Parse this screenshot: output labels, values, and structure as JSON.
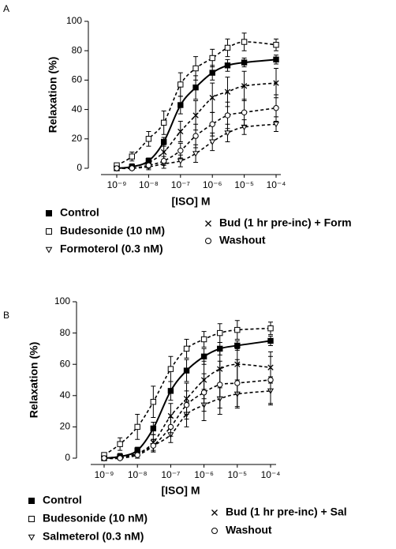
{
  "chart_data": [
    {
      "type": "line",
      "panel": "A",
      "xlabel": "[ISO] M",
      "ylabel": "Relaxation (%)",
      "xscale": "log",
      "x": [
        1e-09,
        3e-09,
        1e-08,
        3e-08,
        1e-07,
        3e-07,
        1e-06,
        3e-06,
        1e-05,
        0.0001
      ],
      "xlim": [
        1e-09,
        0.0001
      ],
      "xticks": [
        {
          "value": 1e-09,
          "label": "10⁻⁹"
        },
        {
          "value": 1e-08,
          "label": "10⁻⁸"
        },
        {
          "value": 1e-07,
          "label": "10⁻⁷"
        },
        {
          "value": 1e-06,
          "label": "10⁻⁶"
        },
        {
          "value": 1e-05,
          "label": "10⁻⁵"
        },
        {
          "value": 0.0001,
          "label": "10⁻⁴"
        }
      ],
      "ylim": [
        0,
        100
      ],
      "yticks": [
        0,
        20,
        40,
        60,
        80,
        100
      ],
      "series": [
        {
          "name": "Control",
          "color": "#000000",
          "marker": "square-filled",
          "line_style": "solid",
          "values": [
            0,
            1,
            5,
            18,
            43,
            55,
            65,
            70,
            72,
            74
          ],
          "errors": [
            0,
            1,
            2,
            3,
            6,
            8,
            5,
            4,
            3,
            3
          ]
        },
        {
          "name": "Budesonide (10 nM)",
          "color": "#000000",
          "marker": "square",
          "line_style": "dashed",
          "values": [
            2,
            8,
            20,
            31,
            57,
            68,
            75,
            82,
            86,
            84
          ],
          "errors": [
            1,
            3,
            5,
            8,
            8,
            8,
            6,
            6,
            6,
            4
          ]
        },
        {
          "name": "Formoterol (0.3 nM)",
          "color": "#000000",
          "marker": "triangle-down",
          "line_style": "dashed",
          "values": [
            0,
            0,
            1,
            3,
            5,
            10,
            18,
            24,
            28,
            30
          ],
          "errors": [
            0,
            1,
            2,
            3,
            4,
            6,
            6,
            6,
            5,
            5
          ]
        },
        {
          "name": "Bud (1 hr pre-inc) + Form",
          "color": "#000000",
          "marker": "x",
          "line_style": "dashed",
          "values": [
            0,
            1,
            4,
            11,
            25,
            36,
            48,
            52,
            56,
            58
          ],
          "errors": [
            1,
            2,
            3,
            5,
            7,
            10,
            10,
            10,
            10,
            10
          ]
        },
        {
          "name": "Washout",
          "color": "#000000",
          "marker": "circle",
          "line_style": "dashed",
          "values": [
            0,
            0,
            2,
            5,
            12,
            22,
            30,
            36,
            38,
            41
          ],
          "errors": [
            1,
            1,
            2,
            3,
            5,
            8,
            8,
            9,
            9,
            9
          ]
        }
      ]
    },
    {
      "type": "line",
      "panel": "B",
      "xlabel": "[ISO] M",
      "ylabel": "Relaxation (%)",
      "xscale": "log",
      "x": [
        1e-09,
        3e-09,
        1e-08,
        3e-08,
        1e-07,
        3e-07,
        1e-06,
        3e-06,
        1e-05,
        0.0001
      ],
      "xlim": [
        1e-09,
        0.0001
      ],
      "xticks": [
        {
          "value": 1e-09,
          "label": "10⁻⁹"
        },
        {
          "value": 1e-08,
          "label": "10⁻⁸"
        },
        {
          "value": 1e-07,
          "label": "10⁻⁷"
        },
        {
          "value": 1e-06,
          "label": "10⁻⁶"
        },
        {
          "value": 1e-05,
          "label": "10⁻⁵"
        },
        {
          "value": 0.0001,
          "label": "10⁻⁴"
        }
      ],
      "ylim": [
        0,
        100
      ],
      "yticks": [
        0,
        20,
        40,
        60,
        80,
        100
      ],
      "series": [
        {
          "name": "Control",
          "color": "#000000",
          "marker": "square-filled",
          "line_style": "solid",
          "values": [
            0,
            1,
            5,
            19,
            43,
            56,
            65,
            70,
            72,
            75
          ],
          "errors": [
            0,
            1,
            2,
            4,
            6,
            7,
            5,
            4,
            3,
            3
          ]
        },
        {
          "name": "Budesonide (10 nM)",
          "color": "#000000",
          "marker": "square",
          "line_style": "dashed",
          "values": [
            2,
            9,
            20,
            36,
            57,
            70,
            76,
            80,
            82,
            83
          ],
          "errors": [
            1,
            4,
            8,
            10,
            8,
            6,
            5,
            6,
            6,
            4
          ]
        },
        {
          "name": "Salmeterol (0.3 nM)",
          "color": "#000000",
          "marker": "triangle-down",
          "line_style": "dashed",
          "values": [
            0,
            0,
            3,
            8,
            15,
            28,
            34,
            38,
            41,
            43
          ],
          "errors": [
            1,
            1,
            2,
            4,
            5,
            8,
            10,
            10,
            9,
            9
          ]
        },
        {
          "name": "Bud (1 hr pre-inc) + Sal",
          "color": "#000000",
          "marker": "x",
          "line_style": "dashed",
          "values": [
            0,
            1,
            3,
            10,
            27,
            38,
            50,
            57,
            60,
            58
          ],
          "errors": [
            1,
            2,
            3,
            5,
            8,
            10,
            12,
            12,
            10,
            10
          ]
        },
        {
          "name": "Washout",
          "color": "#000000",
          "marker": "circle",
          "line_style": "dashed",
          "values": [
            0,
            0,
            2,
            8,
            20,
            34,
            42,
            47,
            48,
            50
          ],
          "errors": [
            1,
            1,
            2,
            4,
            6,
            9,
            12,
            15,
            15,
            15
          ]
        }
      ]
    }
  ]
}
